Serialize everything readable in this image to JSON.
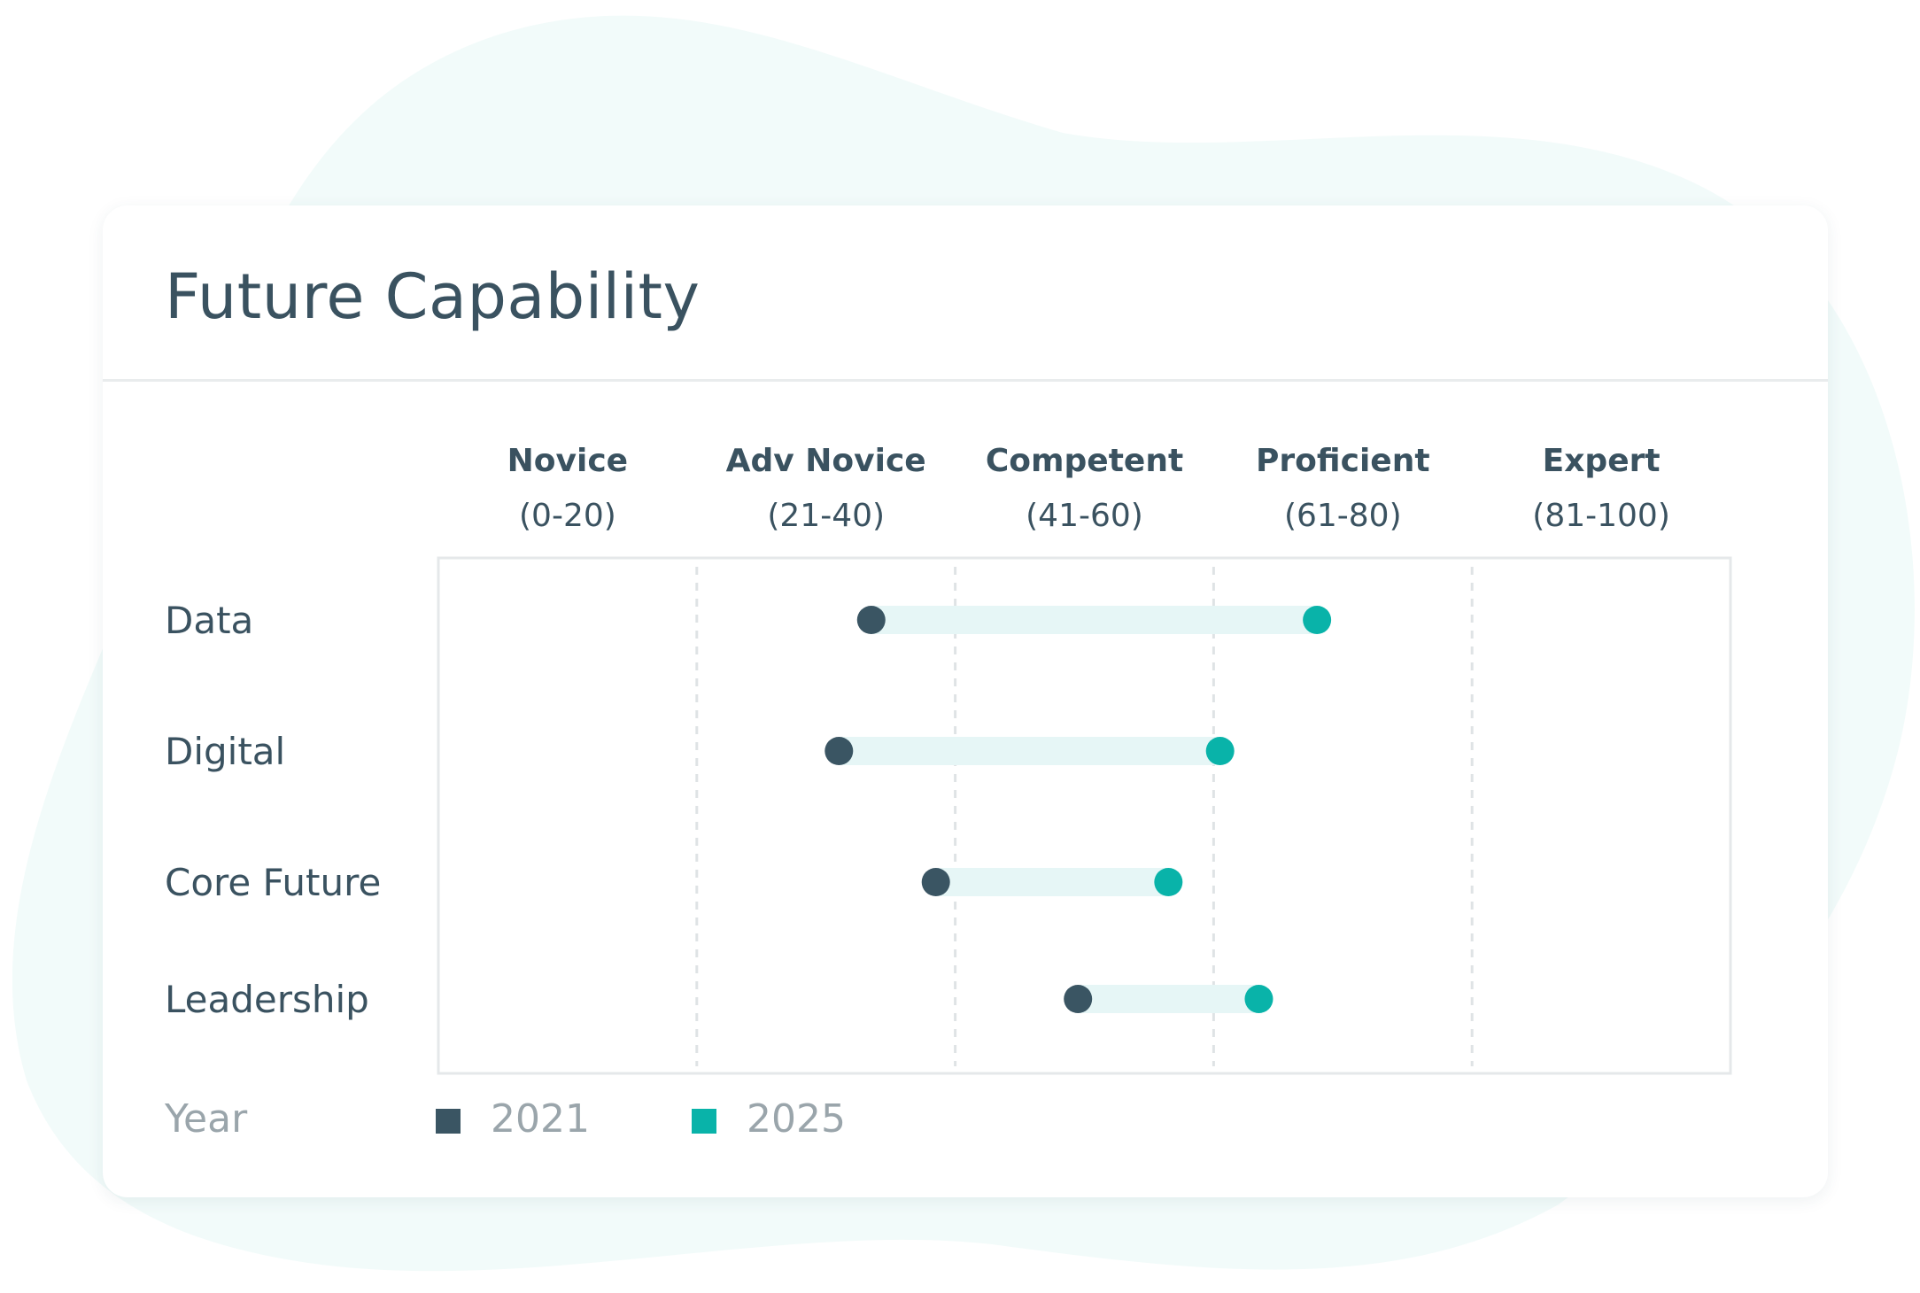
{
  "colors": {
    "blob": "#f2fbfa",
    "text": "#3a5260",
    "muted": "#9aa5ab",
    "series_2021": "#3a5563",
    "series_2025": "#09b3a9",
    "connector": "#e6f6f6",
    "plot_border": "#e5e8ea",
    "gridline": "#dfe3e5"
  },
  "chart_data": {
    "type": "dumbbell",
    "title": "Future Capability",
    "xlim": [
      0,
      100
    ],
    "bands": [
      {
        "name": "Novice",
        "range": "(0-20)"
      },
      {
        "name": "Adv Novice",
        "range": "(21-40)"
      },
      {
        "name": "Competent",
        "range": "(41-60)"
      },
      {
        "name": "Proficient",
        "range": "(61-80)"
      },
      {
        "name": "Expert",
        "range": "(81-100)"
      }
    ],
    "categories": [
      "Data",
      "Digital",
      "Core Future",
      "Leadership"
    ],
    "series": [
      {
        "name": "2021",
        "values": [
          33.5,
          31,
          38.5,
          49.5
        ]
      },
      {
        "name": "2025",
        "values": [
          68,
          60.5,
          56.5,
          63.5
        ]
      }
    ],
    "legend_title": "Year",
    "grid": "vertical-dashed"
  }
}
